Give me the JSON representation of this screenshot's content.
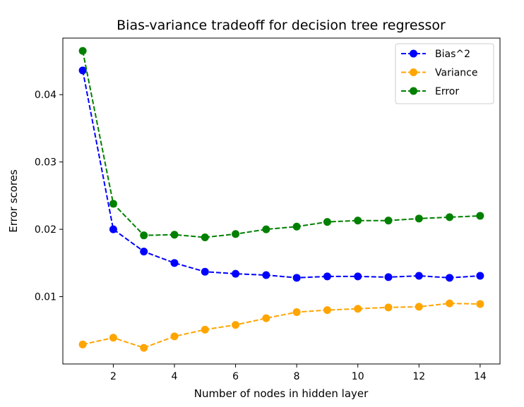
{
  "chart_data": {
    "type": "line",
    "title": "Bias-variance tradeoff for decision tree regressor",
    "xlabel": "Number of nodes in hidden layer",
    "ylabel": "Error scores",
    "x": [
      1,
      2,
      3,
      4,
      5,
      6,
      7,
      8,
      9,
      10,
      11,
      12,
      13,
      14
    ],
    "xlim": [
      0.35,
      14.65
    ],
    "ylim": [
      0.0,
      0.0484
    ],
    "xticks": [
      2,
      4,
      6,
      8,
      10,
      12,
      14
    ],
    "xtick_labels": [
      "2",
      "4",
      "6",
      "8",
      "10",
      "12",
      "14"
    ],
    "yticks": [
      0.01,
      0.02,
      0.03,
      0.04
    ],
    "ytick_labels": [
      "0.01",
      "0.02",
      "0.03",
      "0.04"
    ],
    "grid": false,
    "legend_position": "top-right",
    "line_style": "dashed",
    "marker": "circle",
    "series": [
      {
        "name": "Bias^2",
        "color": "#0000ff",
        "values": [
          0.0436,
          0.02,
          0.0167,
          0.015,
          0.0137,
          0.0134,
          0.0132,
          0.0128,
          0.013,
          0.013,
          0.0129,
          0.0131,
          0.0128,
          0.0131
        ]
      },
      {
        "name": "Variance",
        "color": "#ffa500",
        "values": [
          0.0029,
          0.0039,
          0.0024,
          0.0041,
          0.0051,
          0.0058,
          0.0068,
          0.0077,
          0.008,
          0.0082,
          0.0084,
          0.0085,
          0.009,
          0.0089
        ]
      },
      {
        "name": "Error",
        "color": "#008000",
        "values": [
          0.0465,
          0.0238,
          0.0191,
          0.0192,
          0.0188,
          0.0193,
          0.02,
          0.0204,
          0.0211,
          0.0213,
          0.0213,
          0.0216,
          0.0218,
          0.022
        ]
      }
    ]
  }
}
